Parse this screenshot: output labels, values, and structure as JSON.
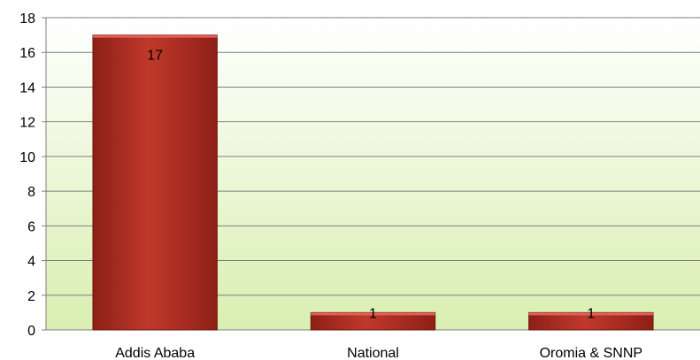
{
  "chart_data": {
    "type": "bar",
    "categories": [
      "Addis Ababa",
      "National",
      "Oromia & SNNP"
    ],
    "values": [
      17,
      1,
      1
    ],
    "data_labels": [
      "17",
      "1",
      "1"
    ],
    "ylim": [
      0,
      18
    ],
    "yticks": [
      0,
      2,
      4,
      6,
      8,
      10,
      12,
      14,
      16,
      18
    ],
    "ytick_labels": [
      "0",
      "2",
      "4",
      "6",
      "8",
      "10",
      "12",
      "14",
      "16",
      "18"
    ],
    "grid": true,
    "legend": "none",
    "title": "",
    "xlabel": "",
    "ylabel": ""
  },
  "colors": {
    "bar": "#c0392b",
    "bar_dark": "#8e1f17",
    "plot_bg_top": "#ffffff",
    "plot_bg_bottom": "#d9efb0",
    "grid": "#7f7f7f"
  }
}
